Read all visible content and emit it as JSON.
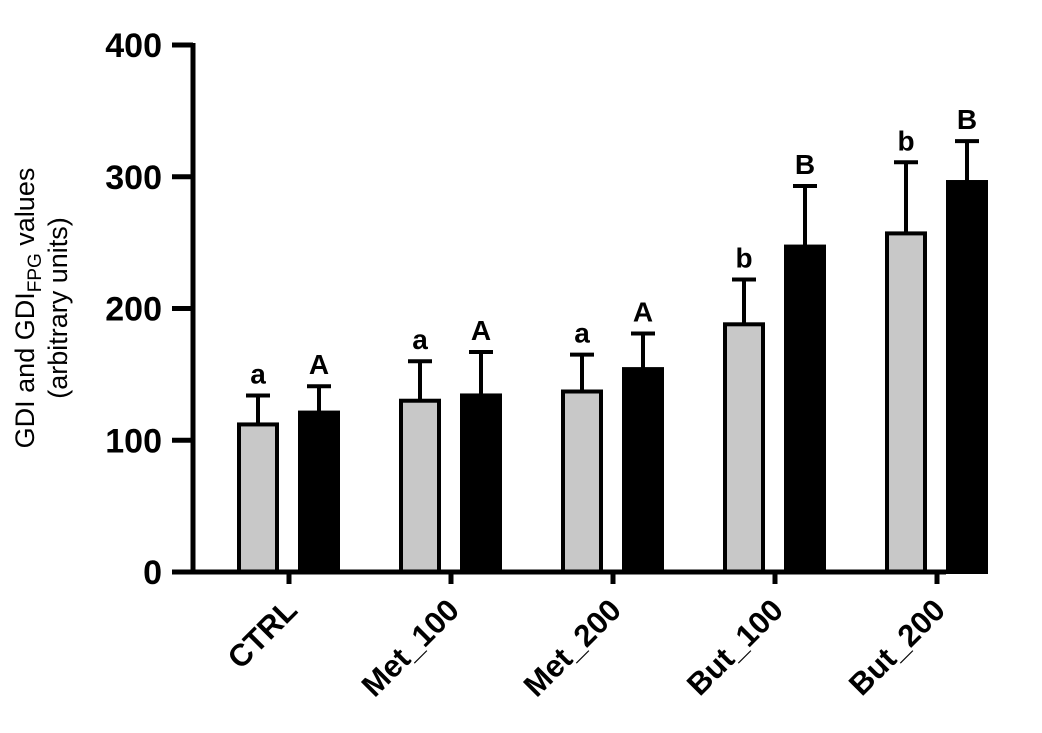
{
  "chart_data": {
    "type": "bar",
    "ylabel_line1": "GDI and GDI",
    "ylabel_sub": "FPG",
    "ylabel_line1_suffix": " values",
    "ylabel_line2": "(arbitrary units)",
    "ylim": [
      0,
      400
    ],
    "yticks": [
      "0",
      "100",
      "200",
      "300",
      "400"
    ],
    "categories": [
      "CTRL",
      "Met_100",
      "Met_200",
      "But_100",
      "But_200"
    ],
    "grid": false,
    "series": [
      {
        "key": "GDI",
        "color": "#c8c8c8",
        "values": [
          112,
          130,
          137,
          188,
          257
        ],
        "error_upper": [
          134,
          160,
          165,
          222,
          311
        ],
        "letters": [
          "a",
          "a",
          "a",
          "b",
          "b"
        ]
      },
      {
        "key": "GDI_FPG",
        "color": "#000000",
        "values": [
          121,
          134,
          154,
          247,
          296
        ],
        "error_upper": [
          141,
          167,
          181,
          293,
          327
        ],
        "letters": [
          "A",
          "A",
          "A",
          "B",
          "B"
        ]
      }
    ]
  }
}
